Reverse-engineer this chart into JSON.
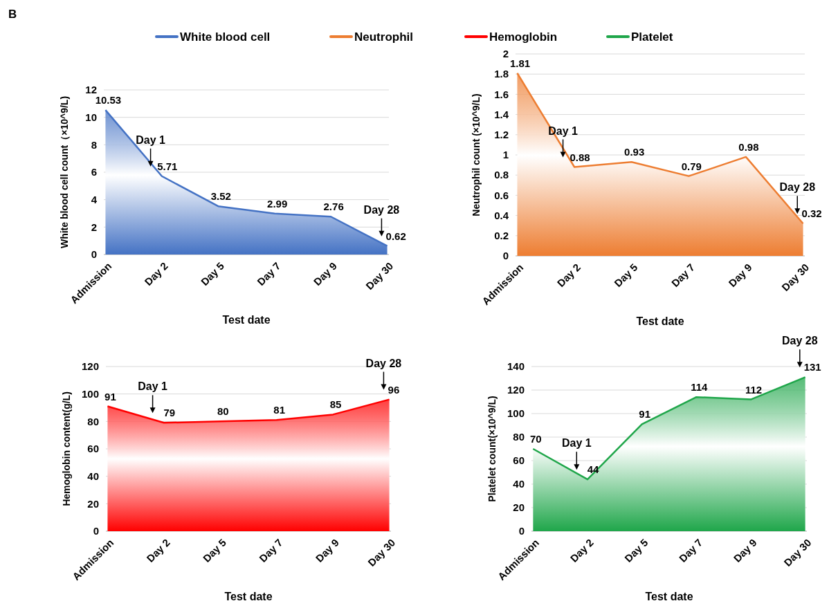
{
  "chart_data": [
    {
      "type": "area",
      "xlabel": "Test date",
      "ylabel": "White blood cell count（×10^9/L)",
      "categories": [
        "Admission",
        "Day 2",
        "Day 5",
        "Day 7",
        "Day 9",
        "Day 30"
      ],
      "series": [
        {
          "name": "White blood cell",
          "color": "#4472c4",
          "values": [
            10.53,
            5.71,
            3.52,
            2.99,
            2.76,
            0.62
          ]
        }
      ],
      "ylim": [
        0,
        12
      ],
      "yticks": [
        0,
        2,
        4,
        6,
        8,
        10,
        12
      ],
      "grid": "y",
      "legend": "top",
      "data_labels": true,
      "annotations": [
        "B",
        {
          "text": "Day 1",
          "x": "Day 2",
          "y": 5.71
        },
        "Day 28"
      ]
    },
    {
      "type": "area",
      "xlabel": "Test date",
      "ylabel": "Neutrophil count (×10^9/L)",
      "categories": [
        "Admission",
        "Day 2",
        "Day 5",
        "Day 7",
        "Day 9",
        "Day 30"
      ],
      "series": [
        {
          "name": "Neutrophil",
          "color": "#ed7d31",
          "values": [
            1.81,
            0.88,
            0.93,
            0.79,
            0.98,
            0.32
          ]
        }
      ],
      "ylim": [
        0,
        2
      ],
      "yticks": [
        0,
        0.2,
        0.4,
        0.6,
        0.8,
        1,
        1.2,
        1.4,
        1.6,
        1.8,
        2
      ],
      "grid": "y",
      "legend": "top",
      "data_labels": true,
      "annotations": [
        {
          "text": "Day 1",
          "x": "Day 2",
          "y": 0.88
        },
        "Day 28"
      ]
    },
    {
      "type": "area",
      "xlabel": "Test date",
      "ylabel": "Hemoglobin content(g/L)",
      "categories": [
        "Admission",
        "Day 2",
        "Day 5",
        "Day 7",
        "Day 9",
        "Day 30"
      ],
      "series": [
        {
          "name": "Hemoglobin",
          "color": "#ff0000",
          "values": [
            91,
            79,
            80,
            81,
            85,
            96
          ]
        }
      ],
      "ylim": [
        0,
        120
      ],
      "yticks": [
        0,
        20,
        40,
        60,
        80,
        100,
        120
      ],
      "grid": "y",
      "legend": "top",
      "data_labels": true,
      "annotations": [
        {
          "text": "Day 1",
          "x": "Day 2",
          "y": 79
        },
        "Day 28"
      ]
    },
    {
      "type": "area",
      "xlabel": "Test date",
      "ylabel": "Platelet count(×10^9/L)",
      "categories": [
        "Admission",
        "Day 2",
        "Day 5",
        "Day 7",
        "Day 9",
        "Day 30"
      ],
      "series": [
        {
          "name": "Platelet",
          "color": "#1fa64a",
          "values": [
            70,
            44,
            91,
            114,
            112,
            131
          ]
        }
      ],
      "ylim": [
        0,
        140
      ],
      "yticks": [
        0,
        20,
        40,
        60,
        80,
        100,
        120,
        140
      ],
      "grid": "y",
      "legend": "top",
      "data_labels": true,
      "annotations": [
        {
          "text": "Day 1",
          "x": "Day 2",
          "y": 44
        },
        "Day 28"
      ]
    }
  ]
}
